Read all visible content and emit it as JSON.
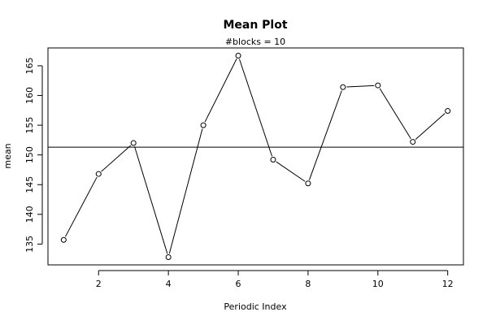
{
  "chart_data": {
    "type": "line",
    "title": "Mean Plot",
    "subtitle": "#blocks =  10",
    "xlabel": "Periodic Index",
    "ylabel": "mean",
    "x": [
      1,
      2,
      3,
      4,
      5,
      6,
      7,
      8,
      9,
      10,
      11,
      12
    ],
    "values": [
      135.7,
      146.8,
      152.0,
      132.8,
      155.0,
      166.7,
      149.2,
      145.2,
      161.4,
      161.7,
      152.2,
      157.4
    ],
    "reference_line": 151.3,
    "xlim": [
      0.55,
      12.45
    ],
    "ylim": [
      131.5,
      168.0
    ],
    "xticks": [
      2,
      4,
      6,
      8,
      10,
      12
    ],
    "yticks": [
      135,
      140,
      145,
      150,
      155,
      160,
      165
    ],
    "grid": false,
    "markers": "open-circle",
    "line_color": "#000000"
  }
}
